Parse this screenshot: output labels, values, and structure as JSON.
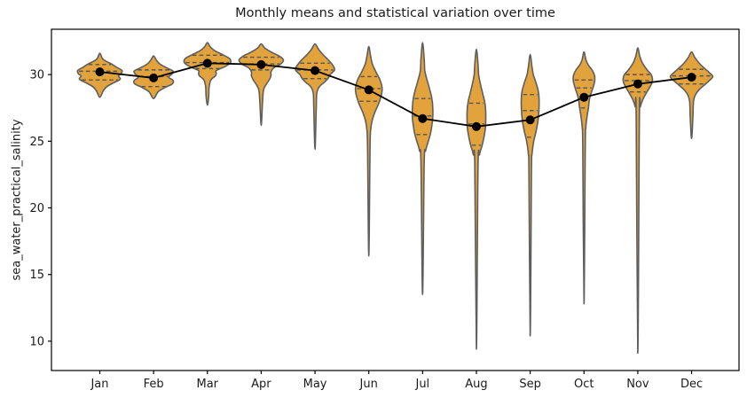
{
  "figure": {
    "title": "Monthly means and statistical variation over time",
    "ylabel": "sea_water_practical_salinity"
  },
  "chart_data": {
    "type": "violin",
    "title": "Monthly means and statistical variation over time",
    "xlabel": "",
    "ylabel": "sea_water_practical_salinity",
    "categories": [
      "Jan",
      "Feb",
      "Mar",
      "Apr",
      "May",
      "Jun",
      "Jul",
      "Aug",
      "Sep",
      "Oct",
      "Nov",
      "Dec"
    ],
    "y_ticks": [
      10,
      15,
      20,
      25,
      30
    ],
    "ylim": [
      7.8,
      33.4
    ],
    "grid": false,
    "legend": "none",
    "overlay": {
      "type": "line+scatter",
      "statistic": "mean",
      "values": [
        30.2,
        29.75,
        30.85,
        30.75,
        30.3,
        28.85,
        26.7,
        26.1,
        26.6,
        28.3,
        29.3,
        29.8
      ]
    },
    "violins": [
      {
        "month": "Jan",
        "min": 28.3,
        "q1": 29.6,
        "median": 30.25,
        "q3": 30.75,
        "max": 31.6,
        "profile": [
          [
            31.6,
            1.3
          ],
          [
            31.2,
            3
          ],
          [
            31.0,
            7
          ],
          [
            30.8,
            13
          ],
          [
            30.55,
            19
          ],
          [
            30.3,
            25
          ],
          [
            30.05,
            24
          ],
          [
            29.9,
            21
          ],
          [
            29.65,
            23
          ],
          [
            29.4,
            16
          ],
          [
            29.1,
            8
          ],
          [
            28.8,
            4
          ],
          [
            28.3,
            1.3
          ]
        ]
      },
      {
        "month": "Feb",
        "min": 28.2,
        "q1": 29.1,
        "median": 29.85,
        "q3": 30.35,
        "max": 31.4,
        "profile": [
          [
            31.4,
            1.3
          ],
          [
            31.1,
            3
          ],
          [
            30.8,
            7
          ],
          [
            30.5,
            15
          ],
          [
            30.25,
            22
          ],
          [
            30.0,
            20
          ],
          [
            29.8,
            17
          ],
          [
            29.55,
            22
          ],
          [
            29.3,
            21
          ],
          [
            29.0,
            12
          ],
          [
            28.7,
            5
          ],
          [
            28.2,
            1.3
          ]
        ]
      },
      {
        "month": "Mar",
        "min": 27.7,
        "q1": 30.45,
        "median": 30.9,
        "q3": 31.45,
        "max": 32.4,
        "profile": [
          [
            32.4,
            1.3
          ],
          [
            32.1,
            3
          ],
          [
            31.8,
            8
          ],
          [
            31.5,
            17
          ],
          [
            31.2,
            25
          ],
          [
            30.9,
            26
          ],
          [
            30.6,
            20
          ],
          [
            30.3,
            10
          ],
          [
            30.1,
            10
          ],
          [
            29.9,
            9
          ],
          [
            29.6,
            4
          ],
          [
            29.1,
            2
          ],
          [
            28.3,
            1.4
          ],
          [
            27.7,
            1.3
          ]
        ]
      },
      {
        "month": "Apr",
        "min": 26.2,
        "q1": 30.35,
        "median": 30.8,
        "q3": 31.3,
        "max": 32.3,
        "profile": [
          [
            32.3,
            1.3
          ],
          [
            32.0,
            4
          ],
          [
            31.7,
            11
          ],
          [
            31.4,
            20
          ],
          [
            31.1,
            25
          ],
          [
            30.8,
            22
          ],
          [
            30.5,
            14
          ],
          [
            30.2,
            11
          ],
          [
            29.9,
            11
          ],
          [
            29.6,
            9
          ],
          [
            29.2,
            5
          ],
          [
            28.8,
            2.5
          ],
          [
            27.8,
            1.4
          ],
          [
            26.2,
            1.3
          ]
        ]
      },
      {
        "month": "May",
        "min": 24.4,
        "q1": 29.7,
        "median": 30.35,
        "q3": 30.85,
        "max": 32.3,
        "profile": [
          [
            32.3,
            1.3
          ],
          [
            31.9,
            4
          ],
          [
            31.5,
            9
          ],
          [
            31.1,
            15
          ],
          [
            30.7,
            20
          ],
          [
            30.35,
            22
          ],
          [
            30.0,
            17
          ],
          [
            29.75,
            15
          ],
          [
            29.45,
            11
          ],
          [
            29.1,
            5
          ],
          [
            28.6,
            2
          ],
          [
            27.5,
            1.4
          ],
          [
            24.4,
            1.3
          ]
        ]
      },
      {
        "month": "Jun",
        "min": 16.4,
        "q1": 28.0,
        "median": 28.95,
        "q3": 29.85,
        "max": 32.1,
        "profile": [
          [
            32.1,
            1.2
          ],
          [
            31.4,
            2
          ],
          [
            30.8,
            4
          ],
          [
            30.2,
            8
          ],
          [
            29.7,
            12
          ],
          [
            29.2,
            14.5
          ],
          [
            28.8,
            15
          ],
          [
            28.3,
            13.5
          ],
          [
            27.8,
            11
          ],
          [
            27.2,
            7
          ],
          [
            26.6,
            4
          ],
          [
            25.9,
            2.2
          ],
          [
            24.5,
            1.4
          ],
          [
            16.4,
            1.2
          ]
        ]
      },
      {
        "month": "Jul",
        "min": 13.5,
        "q1": 25.5,
        "median": 26.9,
        "q3": 28.2,
        "max": 32.4,
        "profile": [
          [
            32.4,
            1.2
          ],
          [
            31.2,
            1.8
          ],
          [
            30.3,
            2.5
          ],
          [
            29.6,
            5
          ],
          [
            28.9,
            8
          ],
          [
            28.2,
            10.5
          ],
          [
            27.5,
            11.5
          ],
          [
            26.8,
            11.5
          ],
          [
            26.2,
            10.5
          ],
          [
            25.6,
            9
          ],
          [
            25.0,
            6.5
          ],
          [
            24.3,
            3.5
          ],
          [
            23.3,
            1.8
          ],
          [
            13.5,
            1.2
          ]
        ]
      },
      {
        "month": "Aug",
        "min": 9.4,
        "q1": 24.7,
        "median": 26.3,
        "q3": 27.85,
        "max": 31.9,
        "profile": [
          [
            31.9,
            1.2
          ],
          [
            30.8,
            1.8
          ],
          [
            30.0,
            2.5
          ],
          [
            29.3,
            4.5
          ],
          [
            28.6,
            7
          ],
          [
            27.9,
            9.5
          ],
          [
            27.2,
            10.5
          ],
          [
            26.5,
            10.5
          ],
          [
            25.9,
            10
          ],
          [
            25.3,
            8.5
          ],
          [
            24.7,
            6.5
          ],
          [
            24.0,
            3.5
          ],
          [
            23.0,
            1.8
          ],
          [
            9.4,
            1.2
          ]
        ]
      },
      {
        "month": "Sep",
        "min": 10.4,
        "q1": 25.3,
        "median": 27.3,
        "q3": 28.5,
        "max": 31.5,
        "profile": [
          [
            31.5,
            1.2
          ],
          [
            30.6,
            2
          ],
          [
            30.0,
            3.5
          ],
          [
            29.4,
            6.5
          ],
          [
            28.8,
            9
          ],
          [
            28.2,
            10
          ],
          [
            27.6,
            10
          ],
          [
            27.0,
            9.5
          ],
          [
            26.4,
            8.5
          ],
          [
            25.7,
            6.5
          ],
          [
            25.0,
            4
          ],
          [
            24.0,
            2
          ],
          [
            22.5,
            1.4
          ],
          [
            10.4,
            1.2
          ]
        ]
      },
      {
        "month": "Oct",
        "min": 12.8,
        "q1": 27.5,
        "median": 29.0,
        "q3": 29.6,
        "max": 31.7,
        "profile": [
          [
            31.7,
            1.2
          ],
          [
            31.1,
            2.2
          ],
          [
            30.7,
            5
          ],
          [
            30.3,
            9.5
          ],
          [
            29.9,
            12
          ],
          [
            29.5,
            12
          ],
          [
            29.1,
            10.5
          ],
          [
            28.6,
            8
          ],
          [
            28.1,
            6
          ],
          [
            27.5,
            5
          ],
          [
            26.9,
            3.5
          ],
          [
            26.0,
            2
          ],
          [
            24.5,
            1.4
          ],
          [
            12.8,
            1.2
          ]
        ]
      },
      {
        "month": "Nov",
        "min": 9.1,
        "q1": 28.7,
        "median": 29.55,
        "q3": 30.0,
        "max": 32.0,
        "profile": [
          [
            32.0,
            1.2
          ],
          [
            31.4,
            2.2
          ],
          [
            30.9,
            5
          ],
          [
            30.4,
            10
          ],
          [
            30.0,
            15
          ],
          [
            29.7,
            16.5
          ],
          [
            29.4,
            16
          ],
          [
            29.0,
            13
          ],
          [
            28.6,
            9.5
          ],
          [
            28.1,
            5.5
          ],
          [
            27.6,
            3
          ],
          [
            26.7,
            1.8
          ],
          [
            9.1,
            1.2
          ]
        ]
      },
      {
        "month": "Dec",
        "min": 25.2,
        "q1": 29.3,
        "median": 29.9,
        "q3": 30.4,
        "max": 31.7,
        "profile": [
          [
            31.7,
            1.3
          ],
          [
            31.3,
            3.5
          ],
          [
            30.9,
            8
          ],
          [
            30.5,
            14
          ],
          [
            30.15,
            20
          ],
          [
            29.85,
            24
          ],
          [
            29.55,
            20
          ],
          [
            29.25,
            15
          ],
          [
            28.9,
            9
          ],
          [
            28.5,
            4.5
          ],
          [
            28.0,
            2.2
          ],
          [
            26.8,
            1.5
          ],
          [
            25.2,
            1.3
          ]
        ]
      }
    ],
    "style": {
      "violin_fill": "#E2A33D",
      "violin_edge": "#5E5E5E",
      "quartile_line": "#555555",
      "mean_color": "#000000",
      "axis_color": "#000000",
      "background": "#ffffff"
    }
  }
}
